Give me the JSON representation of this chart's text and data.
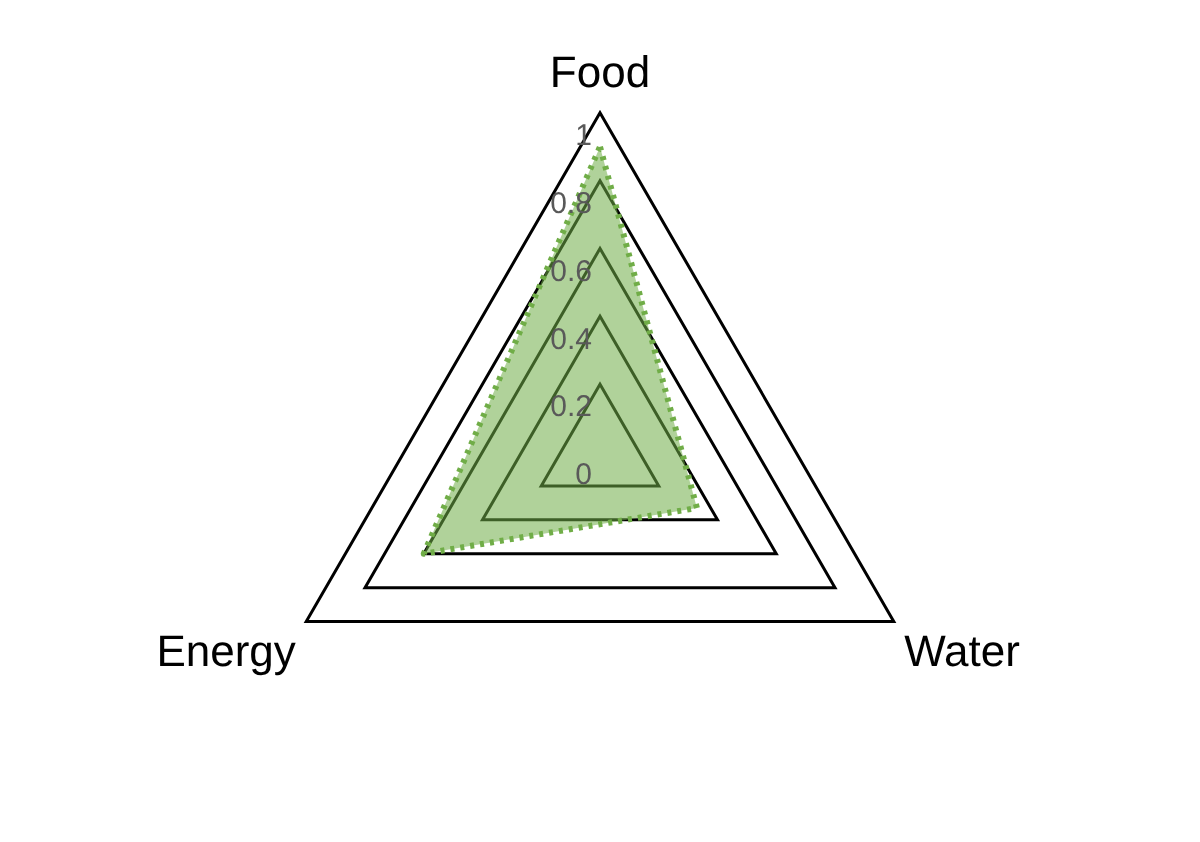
{
  "chart_data": {
    "type": "radar",
    "categories": [
      "Food",
      "Water",
      "Energy"
    ],
    "series": [
      {
        "color": "#70ad47",
        "values": [
          0.9,
          0.33,
          0.6
        ]
      }
    ],
    "ylim": [
      0,
      1
    ],
    "yticks": [
      0,
      0.2,
      0.4,
      0.6,
      0.8,
      1
    ],
    "grid": true,
    "legend": false,
    "marker": "none",
    "line_style": "dotted"
  }
}
